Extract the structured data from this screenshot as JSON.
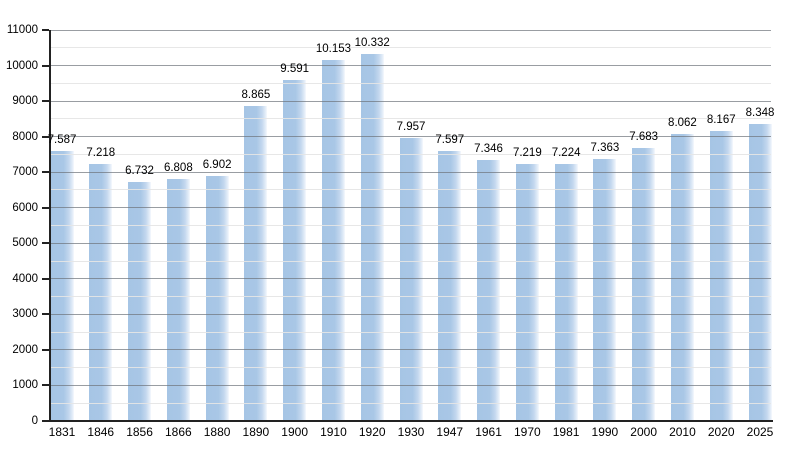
{
  "chart_data": {
    "type": "bar",
    "title": "",
    "xlabel": "",
    "ylabel": "",
    "categories": [
      "1831",
      "1846",
      "1856",
      "1866",
      "1880",
      "1890",
      "1900",
      "1910",
      "1920",
      "1930",
      "1947",
      "1961",
      "1970",
      "1981",
      "1990",
      "2000",
      "2010",
      "2020",
      "2025"
    ],
    "values": [
      7587,
      7218,
      6732,
      6808,
      6902,
      8865,
      9591,
      10153,
      10332,
      7957,
      7597,
      7346,
      7219,
      7224,
      7363,
      7683,
      8062,
      8167,
      8348
    ],
    "value_labels": [
      "7.587",
      "7.218",
      "6.732",
      "6.808",
      "6.902",
      "8.865",
      "9.591",
      "10.153",
      "10.332",
      "7.957",
      "7.597",
      "7.346",
      "7.219",
      "7.224",
      "7.363",
      "7.683",
      "8.062",
      "8.167",
      "8.348"
    ],
    "ylim": [
      0,
      11000
    ],
    "y_major_step": 1000,
    "y_minor_step": 500,
    "y_tick_labels": [
      "0",
      "1000",
      "2000",
      "3000",
      "4000",
      "5000",
      "6000",
      "7000",
      "8000",
      "9000",
      "10000",
      "11000"
    ],
    "grid": "horizontal, major and minor, no vertical lines",
    "legend": "none",
    "colors": {
      "bar_fill": "#a9c7e6",
      "bar_fade_edge": "#f7fafd",
      "major_grid": "#9a9a9a",
      "minor_grid": "#dddddd",
      "axis": "#222222",
      "label_text": "#000000",
      "background": "#ffffff"
    }
  }
}
